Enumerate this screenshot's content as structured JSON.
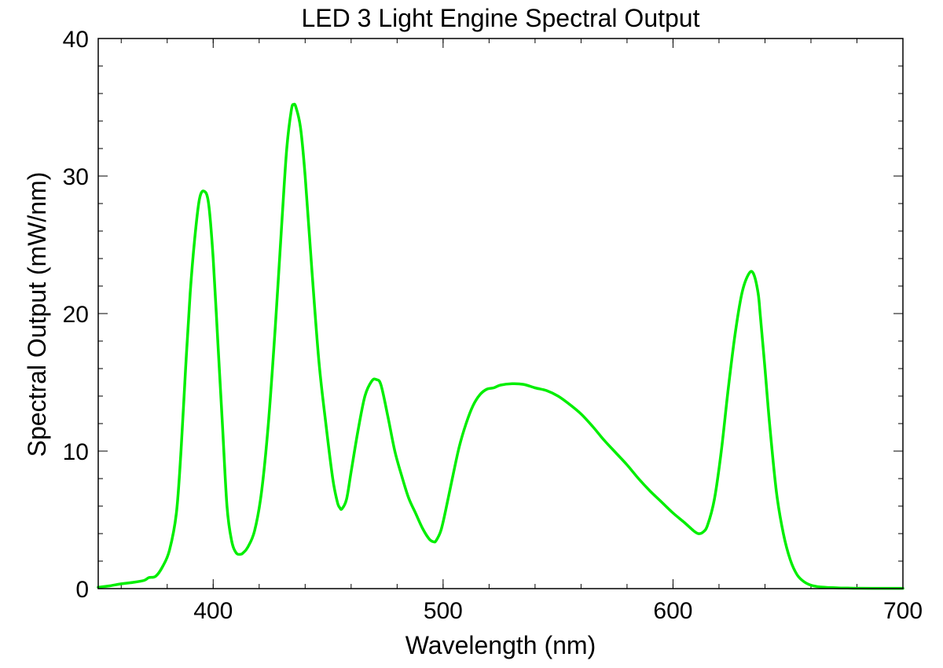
{
  "chart_data": {
    "type": "line",
    "title": "LED 3 Light Engine Spectral Output",
    "xlabel": "Wavelength (nm)",
    "ylabel": "Spectral Output (mW/nm)",
    "xlim": [
      350,
      700
    ],
    "ylim": [
      0,
      40
    ],
    "xticks": [
      400,
      500,
      600,
      700
    ],
    "yticks": [
      0,
      10,
      20,
      30,
      40
    ],
    "grid": false,
    "legend": "none",
    "series": [
      {
        "color": "#00ee00",
        "x": [
          350,
          355,
          360,
          365,
          370,
          372,
          375,
          378,
          381,
          384,
          386,
          388,
          390,
          392,
          394,
          396,
          398,
          400,
          402,
          404,
          406,
          408,
          410,
          412,
          413,
          415,
          418,
          421,
          424,
          427,
          430,
          432,
          434,
          435,
          436,
          438,
          440,
          443,
          446,
          449,
          452,
          454,
          455,
          456,
          458,
          460,
          463,
          466,
          469,
          471,
          473,
          476,
          479,
          482,
          485,
          488,
          491,
          494,
          496,
          497,
          499,
          501,
          504,
          507,
          510,
          513,
          516,
          519,
          522,
          525,
          530,
          535,
          540,
          545,
          550,
          555,
          560,
          565,
          570,
          575,
          580,
          585,
          590,
          595,
          600,
          605,
          609,
          611,
          613,
          615,
          618,
          621,
          624,
          627,
          630,
          633,
          635,
          637,
          638,
          640,
          642,
          645,
          648,
          651,
          654,
          657,
          660,
          664,
          668,
          672,
          676,
          680,
          690,
          700
        ],
        "y": [
          0.1,
          0.2,
          0.35,
          0.45,
          0.6,
          0.8,
          0.9,
          1.6,
          2.8,
          5.5,
          10.0,
          16.0,
          21.5,
          25.5,
          28.3,
          28.9,
          28.0,
          24.0,
          18.0,
          12.0,
          6.0,
          3.5,
          2.6,
          2.5,
          2.6,
          3.0,
          4.2,
          7.0,
          12.0,
          19.0,
          27.0,
          32.0,
          34.8,
          35.2,
          35.0,
          33.5,
          30.0,
          23.0,
          16.5,
          12.0,
          8.0,
          6.3,
          5.9,
          5.8,
          6.5,
          8.5,
          11.5,
          14.0,
          15.1,
          15.2,
          14.8,
          12.5,
          10.0,
          8.2,
          6.6,
          5.5,
          4.4,
          3.6,
          3.4,
          3.5,
          4.2,
          5.6,
          8.0,
          10.3,
          12.0,
          13.3,
          14.1,
          14.5,
          14.6,
          14.8,
          14.9,
          14.85,
          14.6,
          14.4,
          14.0,
          13.4,
          12.7,
          11.8,
          10.8,
          9.9,
          9.0,
          8.0,
          7.1,
          6.3,
          5.5,
          4.8,
          4.2,
          4.0,
          4.1,
          4.6,
          6.5,
          10.0,
          14.5,
          18.5,
          21.5,
          22.9,
          22.9,
          21.5,
          19.8,
          16.0,
          12.0,
          7.0,
          4.0,
          2.1,
          1.0,
          0.5,
          0.25,
          0.12,
          0.08,
          0.05,
          0.04,
          0.03,
          0.02,
          0.02
        ]
      }
    ]
  }
}
